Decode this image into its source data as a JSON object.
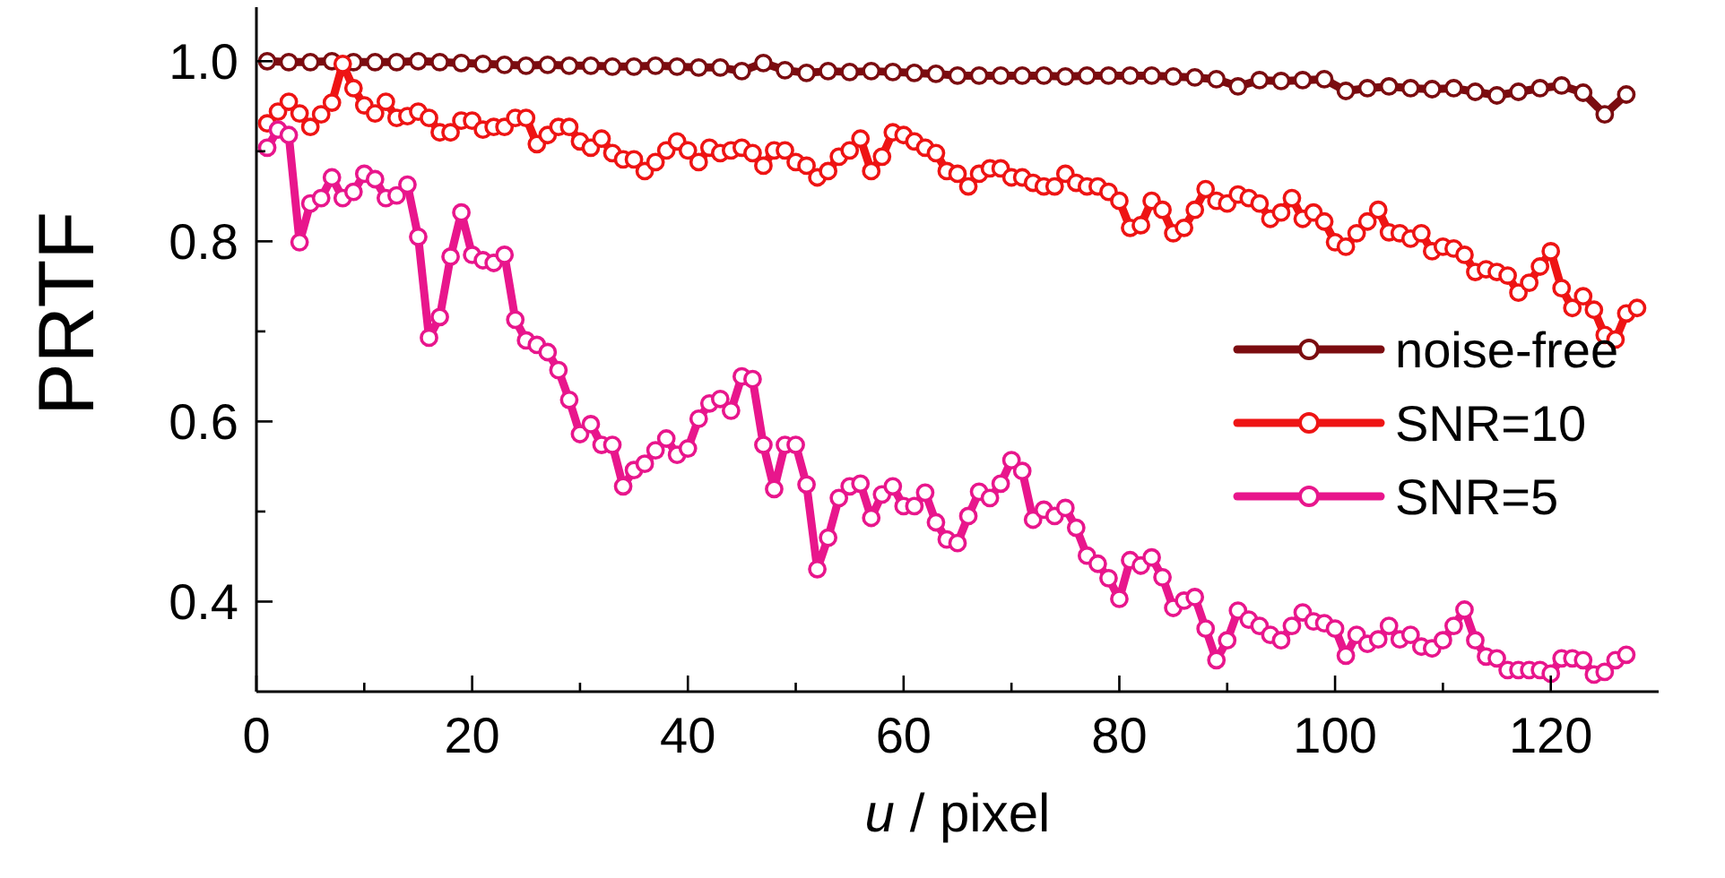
{
  "chart_data": {
    "type": "line",
    "xlabel": "u / pixel",
    "ylabel": "PRTF",
    "xlim": [
      0,
      130
    ],
    "ylim": [
      0.3,
      1.06
    ],
    "xticks": [
      0,
      {
        "value": 10,
        "label": null
      },
      20,
      {
        "value": 30,
        "label": null
      },
      40,
      {
        "value": 50,
        "label": null
      },
      60,
      {
        "value": 70,
        "label": null
      },
      80,
      {
        "value": 90,
        "label": null
      },
      100,
      {
        "value": 110,
        "label": null
      },
      120
    ],
    "yticks": [
      0.4,
      {
        "value": 0.5,
        "label": null
      },
      0.6,
      {
        "value": 0.7,
        "label": null
      },
      0.8,
      {
        "value": 0.9,
        "label": null
      },
      {
        "value": 1,
        "label": "1.0"
      }
    ],
    "grid": false,
    "legend": "right",
    "marker": "circle",
    "line_style": "solid",
    "series": [
      {
        "name": "noise-free",
        "color": "#7b0c10",
        "x": [
          1,
          3,
          5,
          7,
          9,
          11,
          13,
          15,
          17,
          19,
          21,
          23,
          25,
          27,
          29,
          31,
          33,
          35,
          37,
          39,
          41,
          43,
          45,
          47,
          49,
          51,
          53,
          55,
          57,
          59,
          61,
          63,
          65,
          67,
          69,
          71,
          73,
          75,
          77,
          79,
          81,
          83,
          85,
          87,
          89,
          91,
          93,
          95,
          97,
          99,
          101,
          103,
          105,
          107,
          109,
          111,
          113,
          115,
          117,
          119,
          121,
          123,
          125,
          127
        ],
        "values": [
          1.0,
          0.999,
          0.999,
          1.0,
          0.999,
          0.999,
          0.999,
          1.0,
          0.999,
          0.998,
          0.997,
          0.996,
          0.995,
          0.996,
          0.995,
          0.995,
          0.994,
          0.994,
          0.995,
          0.994,
          0.993,
          0.993,
          0.989,
          0.998,
          0.99,
          0.987,
          0.989,
          0.988,
          0.989,
          0.988,
          0.987,
          0.986,
          0.984,
          0.984,
          0.984,
          0.984,
          0.984,
          0.983,
          0.984,
          0.984,
          0.984,
          0.984,
          0.983,
          0.982,
          0.98,
          0.972,
          0.979,
          0.978,
          0.979,
          0.98,
          0.967,
          0.97,
          0.972,
          0.97,
          0.969,
          0.97,
          0.966,
          0.962,
          0.966,
          0.97,
          0.973,
          0.965,
          0.941,
          0.963
        ]
      },
      {
        "name": "SNR=10",
        "color": "#ee1414",
        "x": [
          1,
          2,
          3,
          4,
          5,
          6,
          7,
          8,
          9,
          10,
          11,
          12,
          13,
          14,
          15,
          16,
          17,
          18,
          19,
          20,
          21,
          22,
          23,
          24,
          25,
          26,
          27,
          28,
          29,
          30,
          31,
          32,
          33,
          34,
          35,
          36,
          37,
          38,
          39,
          40,
          41,
          42,
          43,
          44,
          45,
          46,
          47,
          48,
          49,
          50,
          51,
          52,
          53,
          54,
          55,
          56,
          57,
          58,
          59,
          60,
          61,
          62,
          63,
          64,
          65,
          66,
          67,
          68,
          69,
          70,
          71,
          72,
          73,
          74,
          75,
          76,
          77,
          78,
          79,
          80,
          81,
          82,
          83,
          84,
          85,
          86,
          87,
          88,
          89,
          90,
          91,
          92,
          93,
          94,
          95,
          96,
          97,
          98,
          99,
          100,
          101,
          102,
          103,
          104,
          105,
          106,
          107,
          108,
          109,
          110,
          111,
          112,
          113,
          114,
          115,
          116,
          117,
          118,
          119,
          120,
          121,
          122,
          123,
          124,
          125,
          126,
          127,
          128
        ],
        "values": [
          0.931,
          0.944,
          0.955,
          0.942,
          0.927,
          0.941,
          0.954,
          0.997,
          0.97,
          0.951,
          0.942,
          0.955,
          0.937,
          0.939,
          0.944,
          0.937,
          0.921,
          0.921,
          0.934,
          0.934,
          0.924,
          0.927,
          0.927,
          0.937,
          0.937,
          0.908,
          0.918,
          0.927,
          0.927,
          0.911,
          0.904,
          0.914,
          0.898,
          0.891,
          0.891,
          0.878,
          0.888,
          0.901,
          0.911,
          0.901,
          0.888,
          0.904,
          0.898,
          0.901,
          0.904,
          0.898,
          0.884,
          0.901,
          0.901,
          0.888,
          0.884,
          0.871,
          0.878,
          0.894,
          0.901,
          0.914,
          0.878,
          0.894,
          0.921,
          0.918,
          0.911,
          0.904,
          0.898,
          0.878,
          0.875,
          0.861,
          0.875,
          0.881,
          0.881,
          0.871,
          0.871,
          0.865,
          0.861,
          0.861,
          0.875,
          0.865,
          0.861,
          0.861,
          0.855,
          0.845,
          0.815,
          0.818,
          0.845,
          0.835,
          0.809,
          0.815,
          0.835,
          0.858,
          0.845,
          0.842,
          0.852,
          0.848,
          0.842,
          0.825,
          0.832,
          0.848,
          0.825,
          0.832,
          0.822,
          0.799,
          0.794,
          0.809,
          0.822,
          0.835,
          0.81,
          0.809,
          0.803,
          0.809,
          0.789,
          0.794,
          0.792,
          0.785,
          0.766,
          0.769,
          0.766,
          0.762,
          0.743,
          0.754,
          0.772,
          0.789,
          0.748,
          0.726,
          0.739,
          0.724,
          0.696,
          0.691,
          0.72,
          0.726
        ]
      },
      {
        "name": "SNR=5",
        "color": "#e8168c",
        "x": [
          1,
          2,
          3,
          4,
          5,
          6,
          7,
          8,
          9,
          10,
          11,
          12,
          13,
          14,
          15,
          16,
          17,
          18,
          19,
          20,
          21,
          22,
          23,
          24,
          25,
          26,
          27,
          28,
          29,
          30,
          31,
          32,
          33,
          34,
          35,
          36,
          37,
          38,
          39,
          40,
          41,
          42,
          43,
          44,
          45,
          46,
          47,
          48,
          49,
          50,
          51,
          52,
          53,
          54,
          55,
          56,
          57,
          58,
          59,
          60,
          61,
          62,
          63,
          64,
          65,
          66,
          67,
          68,
          69,
          70,
          71,
          72,
          73,
          74,
          75,
          76,
          77,
          78,
          79,
          80,
          81,
          82,
          83,
          84,
          85,
          86,
          87,
          88,
          89,
          90,
          91,
          92,
          93,
          94,
          95,
          96,
          97,
          98,
          99,
          100,
          101,
          102,
          103,
          104,
          105,
          106,
          107,
          108,
          109,
          110,
          111,
          112,
          113,
          114,
          115,
          116,
          117,
          118,
          119,
          120,
          121,
          122,
          123,
          124,
          125,
          126,
          127
        ],
        "values": [
          0.904,
          0.924,
          0.918,
          0.799,
          0.842,
          0.848,
          0.871,
          0.848,
          0.855,
          0.875,
          0.869,
          0.848,
          0.851,
          0.863,
          0.805,
          0.693,
          0.716,
          0.783,
          0.832,
          0.785,
          0.779,
          0.776,
          0.785,
          0.713,
          0.69,
          0.685,
          0.677,
          0.657,
          0.624,
          0.586,
          0.597,
          0.574,
          0.574,
          0.528,
          0.546,
          0.553,
          0.568,
          0.581,
          0.563,
          0.57,
          0.603,
          0.62,
          0.625,
          0.612,
          0.65,
          0.647,
          0.574,
          0.525,
          0.574,
          0.574,
          0.53,
          0.436,
          0.471,
          0.515,
          0.528,
          0.531,
          0.493,
          0.519,
          0.528,
          0.506,
          0.506,
          0.521,
          0.488,
          0.469,
          0.465,
          0.495,
          0.522,
          0.515,
          0.531,
          0.557,
          0.545,
          0.491,
          0.502,
          0.495,
          0.504,
          0.482,
          0.451,
          0.442,
          0.426,
          0.403,
          0.446,
          0.44,
          0.449,
          0.427,
          0.393,
          0.401,
          0.405,
          0.37,
          0.335,
          0.357,
          0.39,
          0.38,
          0.373,
          0.363,
          0.357,
          0.373,
          0.388,
          0.378,
          0.376,
          0.37,
          0.34,
          0.363,
          0.353,
          0.358,
          0.373,
          0.358,
          0.363,
          0.35,
          0.348,
          0.357,
          0.373,
          0.391,
          0.357,
          0.339,
          0.337,
          0.324,
          0.324,
          0.324,
          0.324,
          0.32,
          0.337,
          0.337,
          0.335,
          0.319,
          0.322,
          0.335,
          0.341
        ]
      }
    ]
  }
}
